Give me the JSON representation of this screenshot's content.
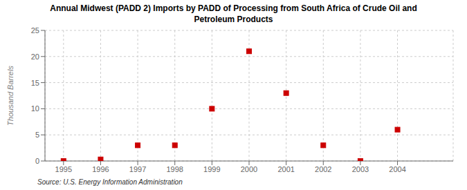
{
  "chart_data": {
    "type": "scatter",
    "title": "Annual Midwest (PADD 2) Imports by PADD of Processing from South Africa of Crude Oil and\nPetroleum Products",
    "ylabel": "Thousand Barrels",
    "annotations": [
      "Source: U.S. Energy Information Administration"
    ],
    "x": [
      1995,
      1996,
      1997,
      1998,
      1999,
      2000,
      2001,
      2002,
      2003,
      2004
    ],
    "values": [
      0,
      0.3,
      3,
      3,
      10,
      21,
      13,
      3,
      0,
      6
    ],
    "color": "#cc0000",
    "marker": "square",
    "xlim": [
      1994.5,
      2005.5
    ],
    "xticks": [
      1995,
      1996,
      1997,
      1998,
      1999,
      2000,
      2001,
      2002,
      2003,
      2004
    ],
    "ylim": [
      0,
      25
    ],
    "yticks": [
      0,
      5,
      10,
      15,
      20,
      25
    ],
    "grid": true
  }
}
